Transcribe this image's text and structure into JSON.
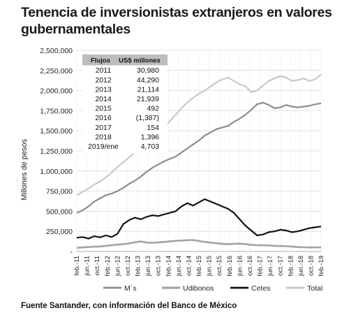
{
  "title": "Tenencia de inversionistas extranjeros en valores gubernamentales",
  "source": "Fuente Santander, con información del Banco de México",
  "chart_data": {
    "type": "line",
    "ylabel": "Millones de pesos",
    "ylim": [
      0,
      2500000
    ],
    "yticks": [
      "2,500,000",
      "2,250,000",
      "2,000,000",
      "1,750,000",
      "1,500,000",
      "1,250,000",
      "1,000,000",
      "750,000",
      "500,000",
      "250,000",
      "-"
    ],
    "ytick_values": [
      2500000,
      2250000,
      2000000,
      1750000,
      1500000,
      1250000,
      1000000,
      750000,
      500000,
      250000,
      0
    ],
    "x_ticks": [
      "feb.-11",
      "jun.-11",
      "oct.-11",
      "feb.-12",
      "jun.-12",
      "oct.-12",
      "feb.-13",
      "jun.-13",
      "oct.-13",
      "feb.-14",
      "jun.-14",
      "oct.-14",
      "feb.-15",
      "jun.-15",
      "oct.-15",
      "feb.-16",
      "jun.-16",
      "oct.-16",
      "feb.-17",
      "jun.-17",
      "oct.-17",
      "feb.-18",
      "jun.-18",
      "oct.-18",
      "feb.-19"
    ],
    "grid": true,
    "legend_position": "bottom",
    "series": [
      {
        "name": "M´s",
        "color": "#8c8c8c",
        "width": 2.2,
        "values": [
          480000,
          510000,
          560000,
          620000,
          660000,
          700000,
          720000,
          750000,
          790000,
          840000,
          880000,
          930000,
          990000,
          1040000,
          1080000,
          1120000,
          1150000,
          1180000,
          1230000,
          1280000,
          1330000,
          1380000,
          1440000,
          1480000,
          1520000,
          1540000,
          1560000,
          1610000,
          1650000,
          1700000,
          1760000,
          1830000,
          1850000,
          1820000,
          1780000,
          1790000,
          1820000,
          1800000,
          1790000,
          1800000,
          1810000,
          1830000,
          1840000
        ]
      },
      {
        "name": "Udibonos",
        "color": "#a3a3a3",
        "width": 2.6,
        "values": [
          45000,
          50000,
          55000,
          60000,
          62000,
          70000,
          78000,
          85000,
          90000,
          100000,
          115000,
          125000,
          110000,
          108000,
          112000,
          118000,
          125000,
          132000,
          135000,
          140000,
          142000,
          130000,
          118000,
          110000,
          102000,
          95000,
          90000,
          95000,
          97000,
          92000,
          82000,
          78000,
          76000,
          74000,
          70000,
          68000,
          65000,
          60000,
          55000,
          52000,
          50000,
          50000,
          50000
        ]
      },
      {
        "name": "Cetes",
        "color": "#111111",
        "width": 2.2,
        "values": [
          170000,
          180000,
          160000,
          190000,
          175000,
          200000,
          180000,
          220000,
          340000,
          390000,
          420000,
          400000,
          430000,
          450000,
          440000,
          460000,
          480000,
          500000,
          560000,
          600000,
          570000,
          610000,
          650000,
          620000,
          590000,
          560000,
          530000,
          480000,
          400000,
          320000,
          260000,
          200000,
          210000,
          240000,
          250000,
          270000,
          260000,
          240000,
          250000,
          270000,
          290000,
          300000,
          310000
        ]
      },
      {
        "name": "Total",
        "color": "#c8c8c8",
        "width": 2.2,
        "values": [
          700000,
          740000,
          780000,
          830000,
          870000,
          920000,
          980000,
          1050000,
          1110000,
          1170000,
          1230000,
          1280000,
          1350000,
          1420000,
          1480000,
          1540000,
          1620000,
          1700000,
          1780000,
          1850000,
          1910000,
          1960000,
          2000000,
          2050000,
          2100000,
          2140000,
          2160000,
          2120000,
          2080000,
          2050000,
          1980000,
          2000000,
          2060000,
          2120000,
          2150000,
          2180000,
          2160000,
          2120000,
          2130000,
          2150000,
          2120000,
          2140000,
          2200000
        ]
      }
    ],
    "table": {
      "headers": [
        "Flujos",
        "US$ millones"
      ],
      "rows": [
        [
          "2011",
          "30,980"
        ],
        [
          "2012",
          "44,290"
        ],
        [
          "2013",
          "21,114"
        ],
        [
          "2014",
          "21,939"
        ],
        [
          "2015",
          "492"
        ],
        [
          "2016",
          "(1,387)"
        ],
        [
          "2017",
          "154"
        ],
        [
          "2018",
          "1,396"
        ],
        [
          "2019/ene",
          "4,703"
        ]
      ]
    }
  }
}
